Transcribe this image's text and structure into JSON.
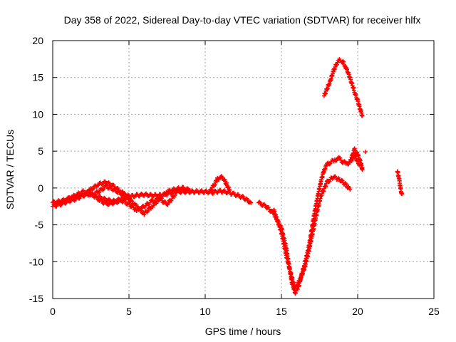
{
  "chart_data": {
    "type": "scatter",
    "title": "Day 358 of 2022, Sidereal Day-to-day VTEC variation (SDTVAR) for receiver hlfx",
    "xlabel": "GPS time / hours",
    "ylabel": "SDTVAR / TECUs",
    "xlim": [
      0,
      25
    ],
    "ylim": [
      -15,
      20
    ],
    "x_ticks": [
      "0",
      "5",
      "10",
      "15",
      "20",
      "25"
    ],
    "y_ticks": [
      "20",
      "15",
      "10",
      "5",
      "0",
      "-5",
      "-10",
      "-15"
    ],
    "grid": true,
    "marker": "+",
    "series": [
      {
        "name": "SDTVAR",
        "color": "#ff0000",
        "segments": [
          {
            "x": [
              0.0,
              0.5,
              1.0,
              1.5,
              2.0,
              2.5,
              3.0,
              3.5,
              4.0,
              4.5,
              5.0,
              5.5,
              6.0,
              6.5,
              7.0,
              7.5,
              8.0,
              8.5,
              9.0,
              9.5,
              10.0,
              10.5,
              11.0,
              11.5,
              12.0,
              12.5,
              13.0
            ],
            "y": [
              -2.0,
              -1.8,
              -1.5,
              -1.2,
              -1.0,
              -0.8,
              -1.2,
              -1.6,
              -1.8,
              -1.5,
              -1.2,
              -1.0,
              -0.9,
              -1.0,
              -1.0,
              -0.8,
              -0.5,
              -0.5,
              -0.5,
              -0.5,
              -0.5,
              -0.6,
              -0.4,
              -0.6,
              -0.9,
              -1.3,
              -2.0
            ]
          },
          {
            "x": [
              0.0,
              0.5,
              1.0,
              1.5,
              2.0,
              2.5,
              3.0,
              3.5,
              4.0,
              4.5,
              5.0,
              5.5,
              6.0,
              6.5,
              7.0,
              7.5,
              8.0,
              8.5,
              9.0
            ],
            "y": [
              -2.5,
              -2.2,
              -1.8,
              -1.5,
              -1.0,
              -0.2,
              0.5,
              0.8,
              0.2,
              -0.5,
              -1.5,
              -2.5,
              -3.5,
              -2.5,
              -1.5,
              -0.5,
              -0.2,
              0.0,
              -0.3
            ]
          },
          {
            "x": [
              1.0,
              1.5,
              2.0,
              2.5,
              3.0,
              3.5,
              4.0,
              4.5,
              5.0,
              5.5,
              6.0,
              6.5,
              7.0,
              7.5,
              8.0
            ],
            "y": [
              -1.5,
              -1.0,
              -0.5,
              -0.8,
              -1.5,
              -2.2,
              -2.0,
              -1.7,
              -2.2,
              -3.0,
              -2.5,
              -1.8,
              -1.5,
              -2.2,
              -1.0
            ]
          },
          {
            "x": [
              2.5,
              3.0,
              3.5,
              4.0,
              4.5,
              5.0
            ],
            "y": [
              -1.0,
              -0.5,
              0.2,
              -0.2,
              -0.8,
              -1.0
            ]
          },
          {
            "x": [
              10.3,
              10.6,
              10.8,
              11.0,
              11.2,
              11.4,
              11.6
            ],
            "y": [
              -0.5,
              0.5,
              1.2,
              1.5,
              1.3,
              0.5,
              -0.3
            ]
          },
          {
            "x": [
              13.5,
              14.0,
              14.5,
              15.0,
              15.3,
              15.5,
              15.7,
              15.9,
              16.1,
              16.3,
              16.5,
              16.8,
              17.0,
              17.2,
              17.4,
              17.6,
              17.8,
              18.0,
              18.2,
              18.5,
              18.8,
              19.0,
              19.3,
              19.5,
              19.8,
              20.0,
              20.3
            ],
            "y": [
              -2.0,
              -2.5,
              -3.5,
              -5.5,
              -8.0,
              -10.5,
              -13.0,
              -14.2,
              -13.5,
              -12.0,
              -10.5,
              -8.0,
              -5.5,
              -3.0,
              -1.0,
              1.0,
              2.5,
              3.2,
              3.5,
              3.8,
              4.0,
              3.6,
              3.3,
              3.5,
              4.5,
              3.5,
              2.8
            ]
          },
          {
            "x": [
              14.5,
              15.0,
              15.3,
              15.6,
              15.9,
              16.2,
              16.5,
              16.8,
              17.0,
              17.3,
              17.6,
              18.0,
              18.4,
              18.8,
              19.2,
              19.5
            ],
            "y": [
              -3.0,
              -6.0,
              -9.0,
              -11.5,
              -13.8,
              -12.5,
              -11.0,
              -8.5,
              -6.5,
              -3.5,
              -1.0,
              0.8,
              1.5,
              1.2,
              0.5,
              -0.2
            ]
          },
          {
            "x": [
              19.5,
              19.7,
              19.8,
              20.0,
              20.2,
              20.3
            ],
            "y": [
              3.5,
              4.8,
              5.2,
              4.5,
              3.5,
              2.5
            ]
          },
          {
            "x": [
              17.8,
              18.0,
              18.2,
              18.4,
              18.6,
              18.8,
              19.0,
              19.2,
              19.4,
              19.6,
              19.8,
              20.0,
              20.2,
              20.3
            ],
            "y": [
              12.5,
              13.5,
              14.5,
              15.8,
              16.8,
              17.3,
              17.2,
              16.5,
              15.5,
              14.3,
              13.0,
              11.8,
              10.5,
              9.8
            ]
          },
          {
            "x": [
              20.5
            ],
            "y": [
              4.9
            ]
          },
          {
            "x": [
              22.6,
              22.7,
              22.75,
              22.8,
              22.85,
              22.9
            ],
            "y": [
              2.2,
              1.5,
              0.8,
              0.0,
              -0.5,
              -0.8
            ]
          }
        ]
      }
    ]
  }
}
